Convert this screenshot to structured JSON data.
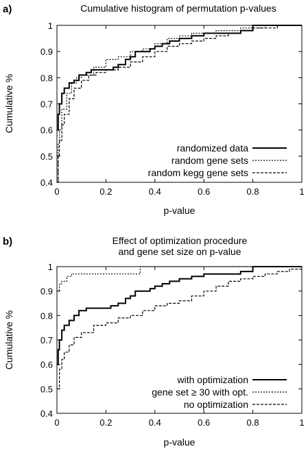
{
  "figure": {
    "panels": [
      {
        "label": "a)",
        "title_lines": [
          "Cumulative histogram of permutation p-values"
        ]
      },
      {
        "label": "b)",
        "title_lines": [
          "Effect of optimization procedure",
          "and gene set size on p-value"
        ]
      }
    ]
  },
  "chart_data": [
    {
      "type": "line",
      "title": "Cumulative histogram of permutation p-values",
      "xlabel": "p-value",
      "ylabel": "Cumulative %",
      "xlim": [
        0,
        1
      ],
      "ylim": [
        0.4,
        1
      ],
      "xticks": [
        "0",
        "0.2",
        "0.4",
        "0.6",
        "0.8",
        "1"
      ],
      "yticks": [
        "0.4",
        "0.5",
        "0.6",
        "0.7",
        "0.8",
        "0.9",
        "1"
      ],
      "grid": false,
      "legend_position": "bottom-right",
      "series": [
        {
          "name": "randomized data",
          "style": "solid",
          "points": [
            [
              0,
              0.6
            ],
            [
              0.005,
              0.66
            ],
            [
              0.01,
              0.7
            ],
            [
              0.02,
              0.74
            ],
            [
              0.03,
              0.76
            ],
            [
              0.05,
              0.78
            ],
            [
              0.07,
              0.79
            ],
            [
              0.09,
              0.81
            ],
            [
              0.12,
              0.82
            ],
            [
              0.14,
              0.83
            ],
            [
              0.17,
              0.83
            ],
            [
              0.2,
              0.83
            ],
            [
              0.23,
              0.84
            ],
            [
              0.25,
              0.85
            ],
            [
              0.28,
              0.87
            ],
            [
              0.3,
              0.88
            ],
            [
              0.32,
              0.9
            ],
            [
              0.35,
              0.9
            ],
            [
              0.38,
              0.91
            ],
            [
              0.4,
              0.92
            ],
            [
              0.43,
              0.93
            ],
            [
              0.46,
              0.94
            ],
            [
              0.5,
              0.95
            ],
            [
              0.55,
              0.96
            ],
            [
              0.6,
              0.97
            ],
            [
              0.65,
              0.97
            ],
            [
              0.7,
              0.97
            ],
            [
              0.75,
              0.98
            ],
            [
              0.8,
              1.0
            ],
            [
              1.0,
              1.0
            ]
          ]
        },
        {
          "name": "random gene sets",
          "style": "dotted",
          "points": [
            [
              0,
              0.4
            ],
            [
              0.005,
              0.55
            ],
            [
              0.01,
              0.6
            ],
            [
              0.02,
              0.68
            ],
            [
              0.04,
              0.74
            ],
            [
              0.06,
              0.78
            ],
            [
              0.08,
              0.8
            ],
            [
              0.1,
              0.81
            ],
            [
              0.15,
              0.84
            ],
            [
              0.2,
              0.87
            ],
            [
              0.25,
              0.88
            ],
            [
              0.3,
              0.9
            ],
            [
              0.35,
              0.91
            ],
            [
              0.4,
              0.93
            ],
            [
              0.45,
              0.95
            ],
            [
              0.5,
              0.96
            ],
            [
              0.55,
              0.97
            ],
            [
              0.6,
              0.97
            ],
            [
              0.65,
              0.98
            ],
            [
              0.7,
              0.98
            ],
            [
              0.75,
              0.99
            ],
            [
              0.8,
              0.99
            ],
            [
              0.85,
              1.0
            ],
            [
              1.0,
              1.0
            ]
          ]
        },
        {
          "name": "random kegg gene sets",
          "style": "dashed",
          "points": [
            [
              0,
              0.4
            ],
            [
              0.005,
              0.5
            ],
            [
              0.01,
              0.56
            ],
            [
              0.02,
              0.62
            ],
            [
              0.03,
              0.66
            ],
            [
              0.05,
              0.72
            ],
            [
              0.07,
              0.76
            ],
            [
              0.1,
              0.79
            ],
            [
              0.13,
              0.81
            ],
            [
              0.16,
              0.82
            ],
            [
              0.2,
              0.83
            ],
            [
              0.25,
              0.84
            ],
            [
              0.3,
              0.86
            ],
            [
              0.35,
              0.88
            ],
            [
              0.4,
              0.9
            ],
            [
              0.45,
              0.92
            ],
            [
              0.5,
              0.93
            ],
            [
              0.55,
              0.94
            ],
            [
              0.6,
              0.95
            ],
            [
              0.65,
              0.96
            ],
            [
              0.7,
              0.97
            ],
            [
              0.75,
              0.98
            ],
            [
              0.8,
              0.99
            ],
            [
              0.85,
              0.99
            ],
            [
              0.9,
              1.0
            ],
            [
              1.0,
              1.0
            ]
          ]
        }
      ]
    },
    {
      "type": "line",
      "title": "Effect of optimization procedure and gene set size on p-value",
      "xlabel": "p-value",
      "ylabel": "Cumulative %",
      "xlim": [
        0,
        1
      ],
      "ylim": [
        0.4,
        1
      ],
      "xticks": [
        "0",
        "0.2",
        "0.4",
        "0.6",
        "0.8",
        "1"
      ],
      "yticks": [
        "0.4",
        "0.5",
        "0.6",
        "0.7",
        "0.8",
        "0.9",
        "1"
      ],
      "grid": false,
      "legend_position": "bottom-right",
      "series": [
        {
          "name": "with optimization",
          "style": "solid",
          "points": [
            [
              0,
              0.6
            ],
            [
              0.005,
              0.66
            ],
            [
              0.01,
              0.7
            ],
            [
              0.02,
              0.74
            ],
            [
              0.03,
              0.76
            ],
            [
              0.05,
              0.78
            ],
            [
              0.07,
              0.8
            ],
            [
              0.09,
              0.82
            ],
            [
              0.12,
              0.83
            ],
            [
              0.2,
              0.83
            ],
            [
              0.22,
              0.84
            ],
            [
              0.25,
              0.85
            ],
            [
              0.28,
              0.87
            ],
            [
              0.3,
              0.88
            ],
            [
              0.32,
              0.9
            ],
            [
              0.35,
              0.9
            ],
            [
              0.38,
              0.91
            ],
            [
              0.4,
              0.92
            ],
            [
              0.43,
              0.93
            ],
            [
              0.46,
              0.94
            ],
            [
              0.5,
              0.95
            ],
            [
              0.55,
              0.96
            ],
            [
              0.6,
              0.97
            ],
            [
              0.65,
              0.97
            ],
            [
              0.7,
              0.97
            ],
            [
              0.75,
              0.98
            ],
            [
              0.8,
              1.0
            ],
            [
              1.0,
              1.0
            ]
          ]
        },
        {
          "name": "gene set ≥ 30 with opt.",
          "style": "dotted",
          "points": [
            [
              0,
              0.9
            ],
            [
              0.01,
              0.93
            ],
            [
              0.02,
              0.94
            ],
            [
              0.04,
              0.96
            ],
            [
              0.06,
              0.97
            ],
            [
              0.1,
              0.97
            ],
            [
              0.2,
              0.97
            ],
            [
              0.3,
              0.97
            ],
            [
              0.33,
              0.97
            ],
            [
              0.34,
              1.0
            ],
            [
              1.0,
              1.0
            ]
          ]
        },
        {
          "name": "no optimization",
          "style": "dashed",
          "points": [
            [
              0,
              0.5
            ],
            [
              0.01,
              0.58
            ],
            [
              0.02,
              0.62
            ],
            [
              0.03,
              0.65
            ],
            [
              0.05,
              0.68
            ],
            [
              0.07,
              0.71
            ],
            [
              0.1,
              0.73
            ],
            [
              0.15,
              0.76
            ],
            [
              0.2,
              0.77
            ],
            [
              0.25,
              0.79
            ],
            [
              0.3,
              0.8
            ],
            [
              0.35,
              0.82
            ],
            [
              0.4,
              0.84
            ],
            [
              0.45,
              0.85
            ],
            [
              0.5,
              0.86
            ],
            [
              0.55,
              0.88
            ],
            [
              0.6,
              0.9
            ],
            [
              0.65,
              0.92
            ],
            [
              0.7,
              0.94
            ],
            [
              0.75,
              0.95
            ],
            [
              0.8,
              0.96
            ],
            [
              0.85,
              0.97
            ],
            [
              0.9,
              0.98
            ],
            [
              0.95,
              0.99
            ],
            [
              1.0,
              1.0
            ]
          ]
        }
      ]
    }
  ]
}
